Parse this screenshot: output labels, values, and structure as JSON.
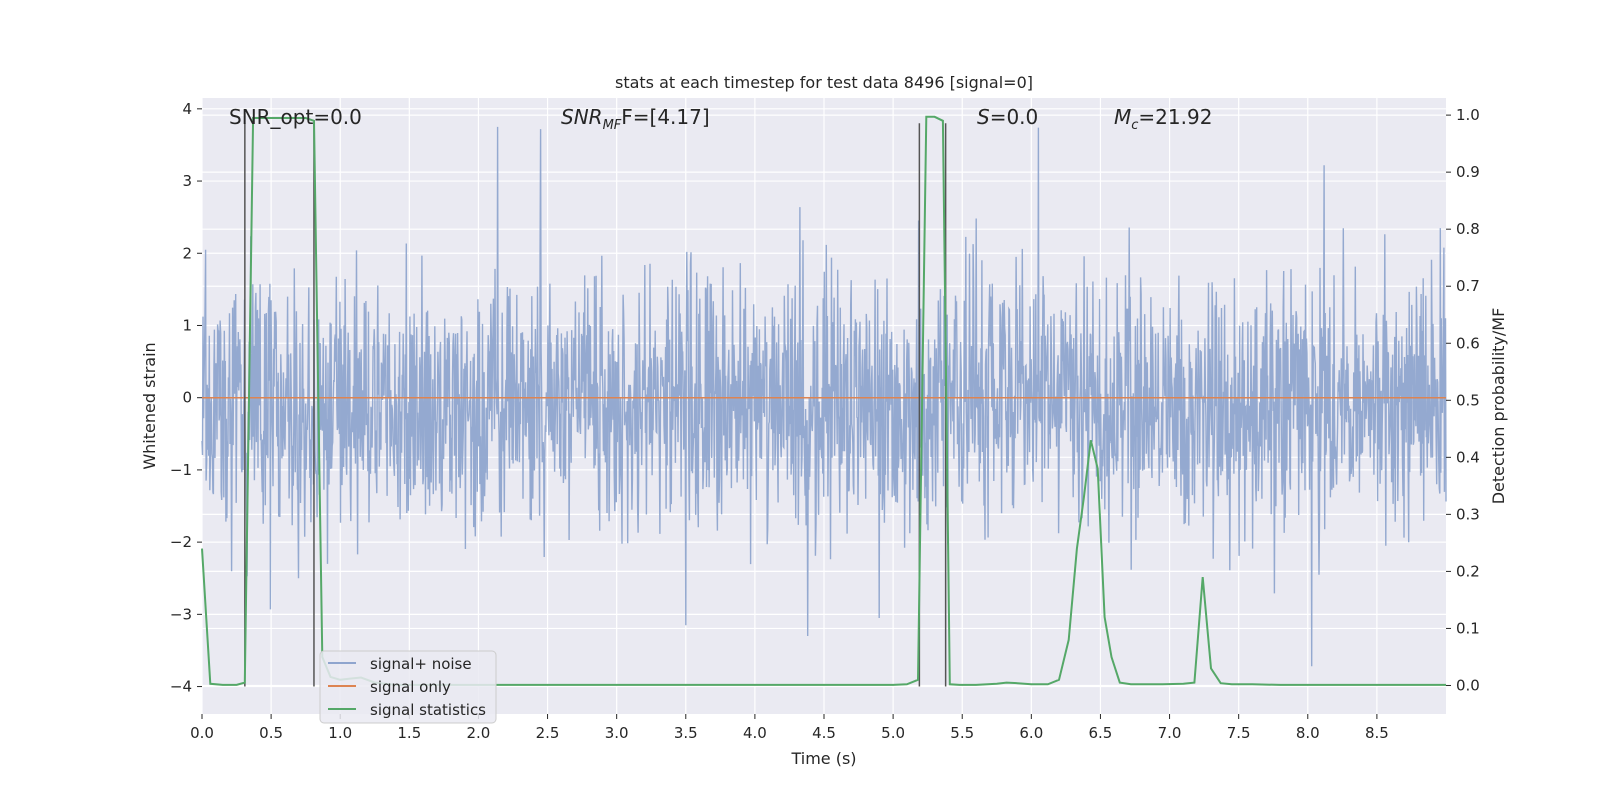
{
  "chart_data": {
    "type": "line",
    "title": "stats at each timestep for test data 8496 [signal=0]",
    "xlabel": "Time (s)",
    "ylabel_left": "Whitened strain",
    "ylabel_right": "Detection probability/MF",
    "xlim": [
      0.0,
      9.0
    ],
    "ylim_left": [
      -4.38,
      4.15
    ],
    "ylim_right": [
      -0.05,
      1.03
    ],
    "grid": true,
    "background": "#eaeaf2",
    "x_ticks": [
      "0.0",
      "0.5",
      "1.0",
      "1.5",
      "2.0",
      "2.5",
      "3.0",
      "3.5",
      "4.0",
      "4.5",
      "5.0",
      "5.5",
      "6.0",
      "6.5",
      "7.0",
      "7.5",
      "8.0",
      "8.5"
    ],
    "y_ticks_left": [
      "−4",
      "−3",
      "−2",
      "−1",
      "0",
      "1",
      "2",
      "3",
      "4"
    ],
    "y_ticks_right": [
      "0.0",
      "0.1",
      "0.2",
      "0.3",
      "0.4",
      "0.5",
      "0.6",
      "0.7",
      "0.8",
      "0.9",
      "1.0"
    ],
    "annotations": {
      "snr_opt": "SNR_opt=0.0",
      "snr_mf_base": "SNR",
      "snr_mf_sub": "MF",
      "snr_mf_value": "F=[4.17]",
      "s_label": "S",
      "s_value": "=0.0",
      "mc_base": "M",
      "mc_sub": "c",
      "mc_value": "=21.92"
    },
    "legend": {
      "placement": "lower-left",
      "entries": [
        {
          "label": "signal+ noise",
          "color": "#8fa5ce"
        },
        {
          "label": "signal only",
          "color": "#dd8452"
        },
        {
          "label": "signal statistics",
          "color": "#55a868"
        }
      ]
    },
    "series": [
      {
        "name": "signal+ noise",
        "axis": "left",
        "color": "#8fa5ce",
        "noise_envelope": {
          "typical_upper": 1.4,
          "typical_lower": -1.6,
          "peak_upper": 3.75,
          "peak_lower": -3.7
        },
        "notable_peaks": [
          [
            2.14,
            3.75
          ],
          [
            2.45,
            3.72
          ],
          [
            6.05,
            3.74
          ],
          [
            8.12,
            3.22
          ],
          [
            8.03,
            -3.72
          ],
          [
            4.38,
            -3.3
          ],
          [
            3.5,
            -3.15
          ],
          [
            4.9,
            -3.05
          ]
        ]
      },
      {
        "name": "signal only",
        "axis": "left",
        "color": "#dd8452",
        "x": [
          0.0,
          9.0
        ],
        "y": [
          0.0,
          0.0
        ]
      },
      {
        "name": "signal statistics",
        "axis": "right",
        "color": "#55a868",
        "x": [
          0.0,
          0.06,
          0.15,
          0.25,
          0.31,
          0.37,
          0.45,
          0.55,
          0.65,
          0.75,
          0.81,
          0.87,
          0.93,
          1.0,
          1.07,
          1.15,
          1.25,
          1.4,
          2.0,
          3.0,
          4.0,
          5.0,
          5.1,
          5.18,
          5.24,
          5.3,
          5.36,
          5.41,
          5.48,
          5.6,
          5.75,
          5.82,
          5.9,
          6.0,
          6.12,
          6.2,
          6.27,
          6.33,
          6.38,
          6.43,
          6.48,
          6.53,
          6.58,
          6.64,
          6.72,
          6.8,
          6.95,
          7.1,
          7.18,
          7.24,
          7.3,
          7.37,
          7.45,
          7.6,
          7.8,
          8.0,
          8.5,
          9.0
        ],
        "y": [
          0.24,
          0.003,
          0.001,
          0.001,
          0.005,
          0.995,
          0.995,
          0.995,
          0.995,
          0.995,
          0.99,
          0.05,
          0.015,
          0.01,
          0.012,
          0.014,
          0.005,
          0.001,
          0.001,
          0.001,
          0.001,
          0.001,
          0.002,
          0.01,
          0.997,
          0.997,
          0.99,
          0.002,
          0.001,
          0.001,
          0.003,
          0.005,
          0.004,
          0.002,
          0.002,
          0.01,
          0.08,
          0.24,
          0.33,
          0.43,
          0.38,
          0.12,
          0.05,
          0.005,
          0.002,
          0.002,
          0.002,
          0.003,
          0.005,
          0.19,
          0.03,
          0.004,
          0.002,
          0.002,
          0.001,
          0.001,
          0.001,
          0.001
        ]
      }
    ],
    "vertical_lines": {
      "axis": "left",
      "color": "#555555",
      "y_range": [
        -4.0,
        3.8
      ],
      "x": [
        0.31,
        0.81,
        5.19,
        5.38
      ]
    }
  }
}
